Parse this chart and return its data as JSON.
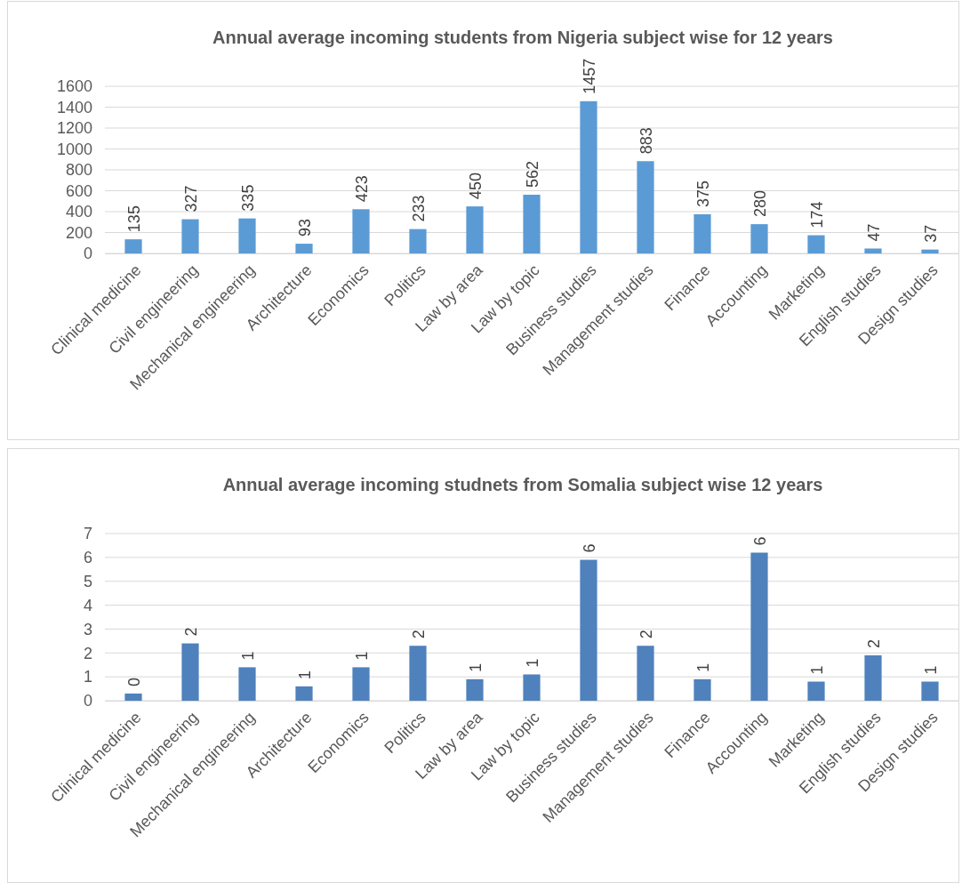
{
  "chart_data": [
    {
      "type": "bar",
      "title": "Annual average incoming students from Nigeria subject wise for 12 years",
      "categories": [
        "Clinical medicine",
        "Civil engineering",
        "Mechanical engineering",
        "Architecture",
        "Economics",
        "Politics",
        "Law by area",
        "Law by topic",
        "Business studies",
        "Management studies",
        "Finance",
        "Accounting",
        "Marketing",
        "English studies",
        "Design studies"
      ],
      "series": [
        {
          "color": "#5b9bd5",
          "values": [
            135,
            327,
            335,
            93,
            423,
            233,
            450,
            562,
            1457,
            883,
            375,
            280,
            174,
            47,
            37
          ]
        }
      ],
      "ylim": [
        0,
        1600
      ],
      "yticks": [
        0,
        200,
        400,
        600,
        800,
        1000,
        1200,
        1400,
        1600
      ],
      "grid": "y",
      "data_labels": true
    },
    {
      "type": "bar",
      "title": "Annual average incoming studnets from Somalia subject wise 12 years",
      "categories": [
        "Clinical medicine",
        "Civil engineering",
        "Mechanical engineering",
        "Architecture",
        "Economics",
        "Politics",
        "Law by area",
        "Law by topic",
        "Business studies",
        "Management studies",
        "Finance",
        "Accounting",
        "Marketing",
        "English studies",
        "Design studies"
      ],
      "series": [
        {
          "color": "#4f81bd",
          "values": [
            0.3,
            2.4,
            1.4,
            0.6,
            1.4,
            2.3,
            0.9,
            1.1,
            5.9,
            2.3,
            0.9,
            6.2,
            0.8,
            1.9,
            0.8
          ],
          "value_labels": [
            "0",
            "2",
            "1",
            "1",
            "1",
            "2",
            "1",
            "1",
            "6",
            "2",
            "1",
            "6",
            "1",
            "2",
            "1"
          ]
        }
      ],
      "ylim": [
        0,
        7
      ],
      "yticks": [
        0,
        1,
        2,
        3,
        4,
        5,
        6,
        7
      ],
      "grid": "y"
    }
  ]
}
